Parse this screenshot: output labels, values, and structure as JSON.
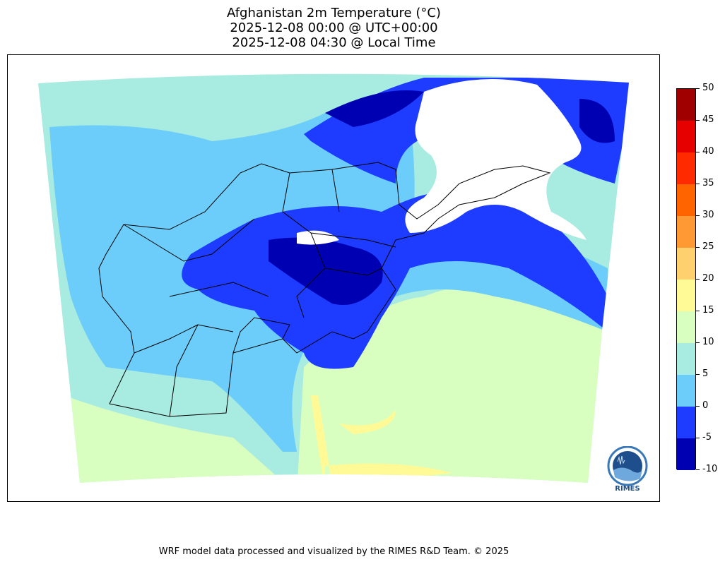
{
  "title": {
    "line1": "Afghanistan 2m Temperature (°C)",
    "line2": "2025-12-08 00:00 @ UTC+00:00",
    "line3": "2025-12-08 04:30 @ Local Time"
  },
  "colorbar": {
    "ticks": [
      "50",
      "45",
      "40",
      "35",
      "30",
      "25",
      "20",
      "15",
      "10",
      "5",
      "0",
      "-5",
      "-10"
    ],
    "colors": [
      "#a00000",
      "#e60000",
      "#ff2a00",
      "#ff6400",
      "#ff9933",
      "#ffd06e",
      "#fffa96",
      "#d9ffc0",
      "#a8ebe0",
      "#6ccdfa",
      "#1e3cff",
      "#0000b3"
    ]
  },
  "logo": {
    "text": "RIMES"
  },
  "footer": "WRF model data processed and visualized by the RIMES R&D Team. © 2025"
}
